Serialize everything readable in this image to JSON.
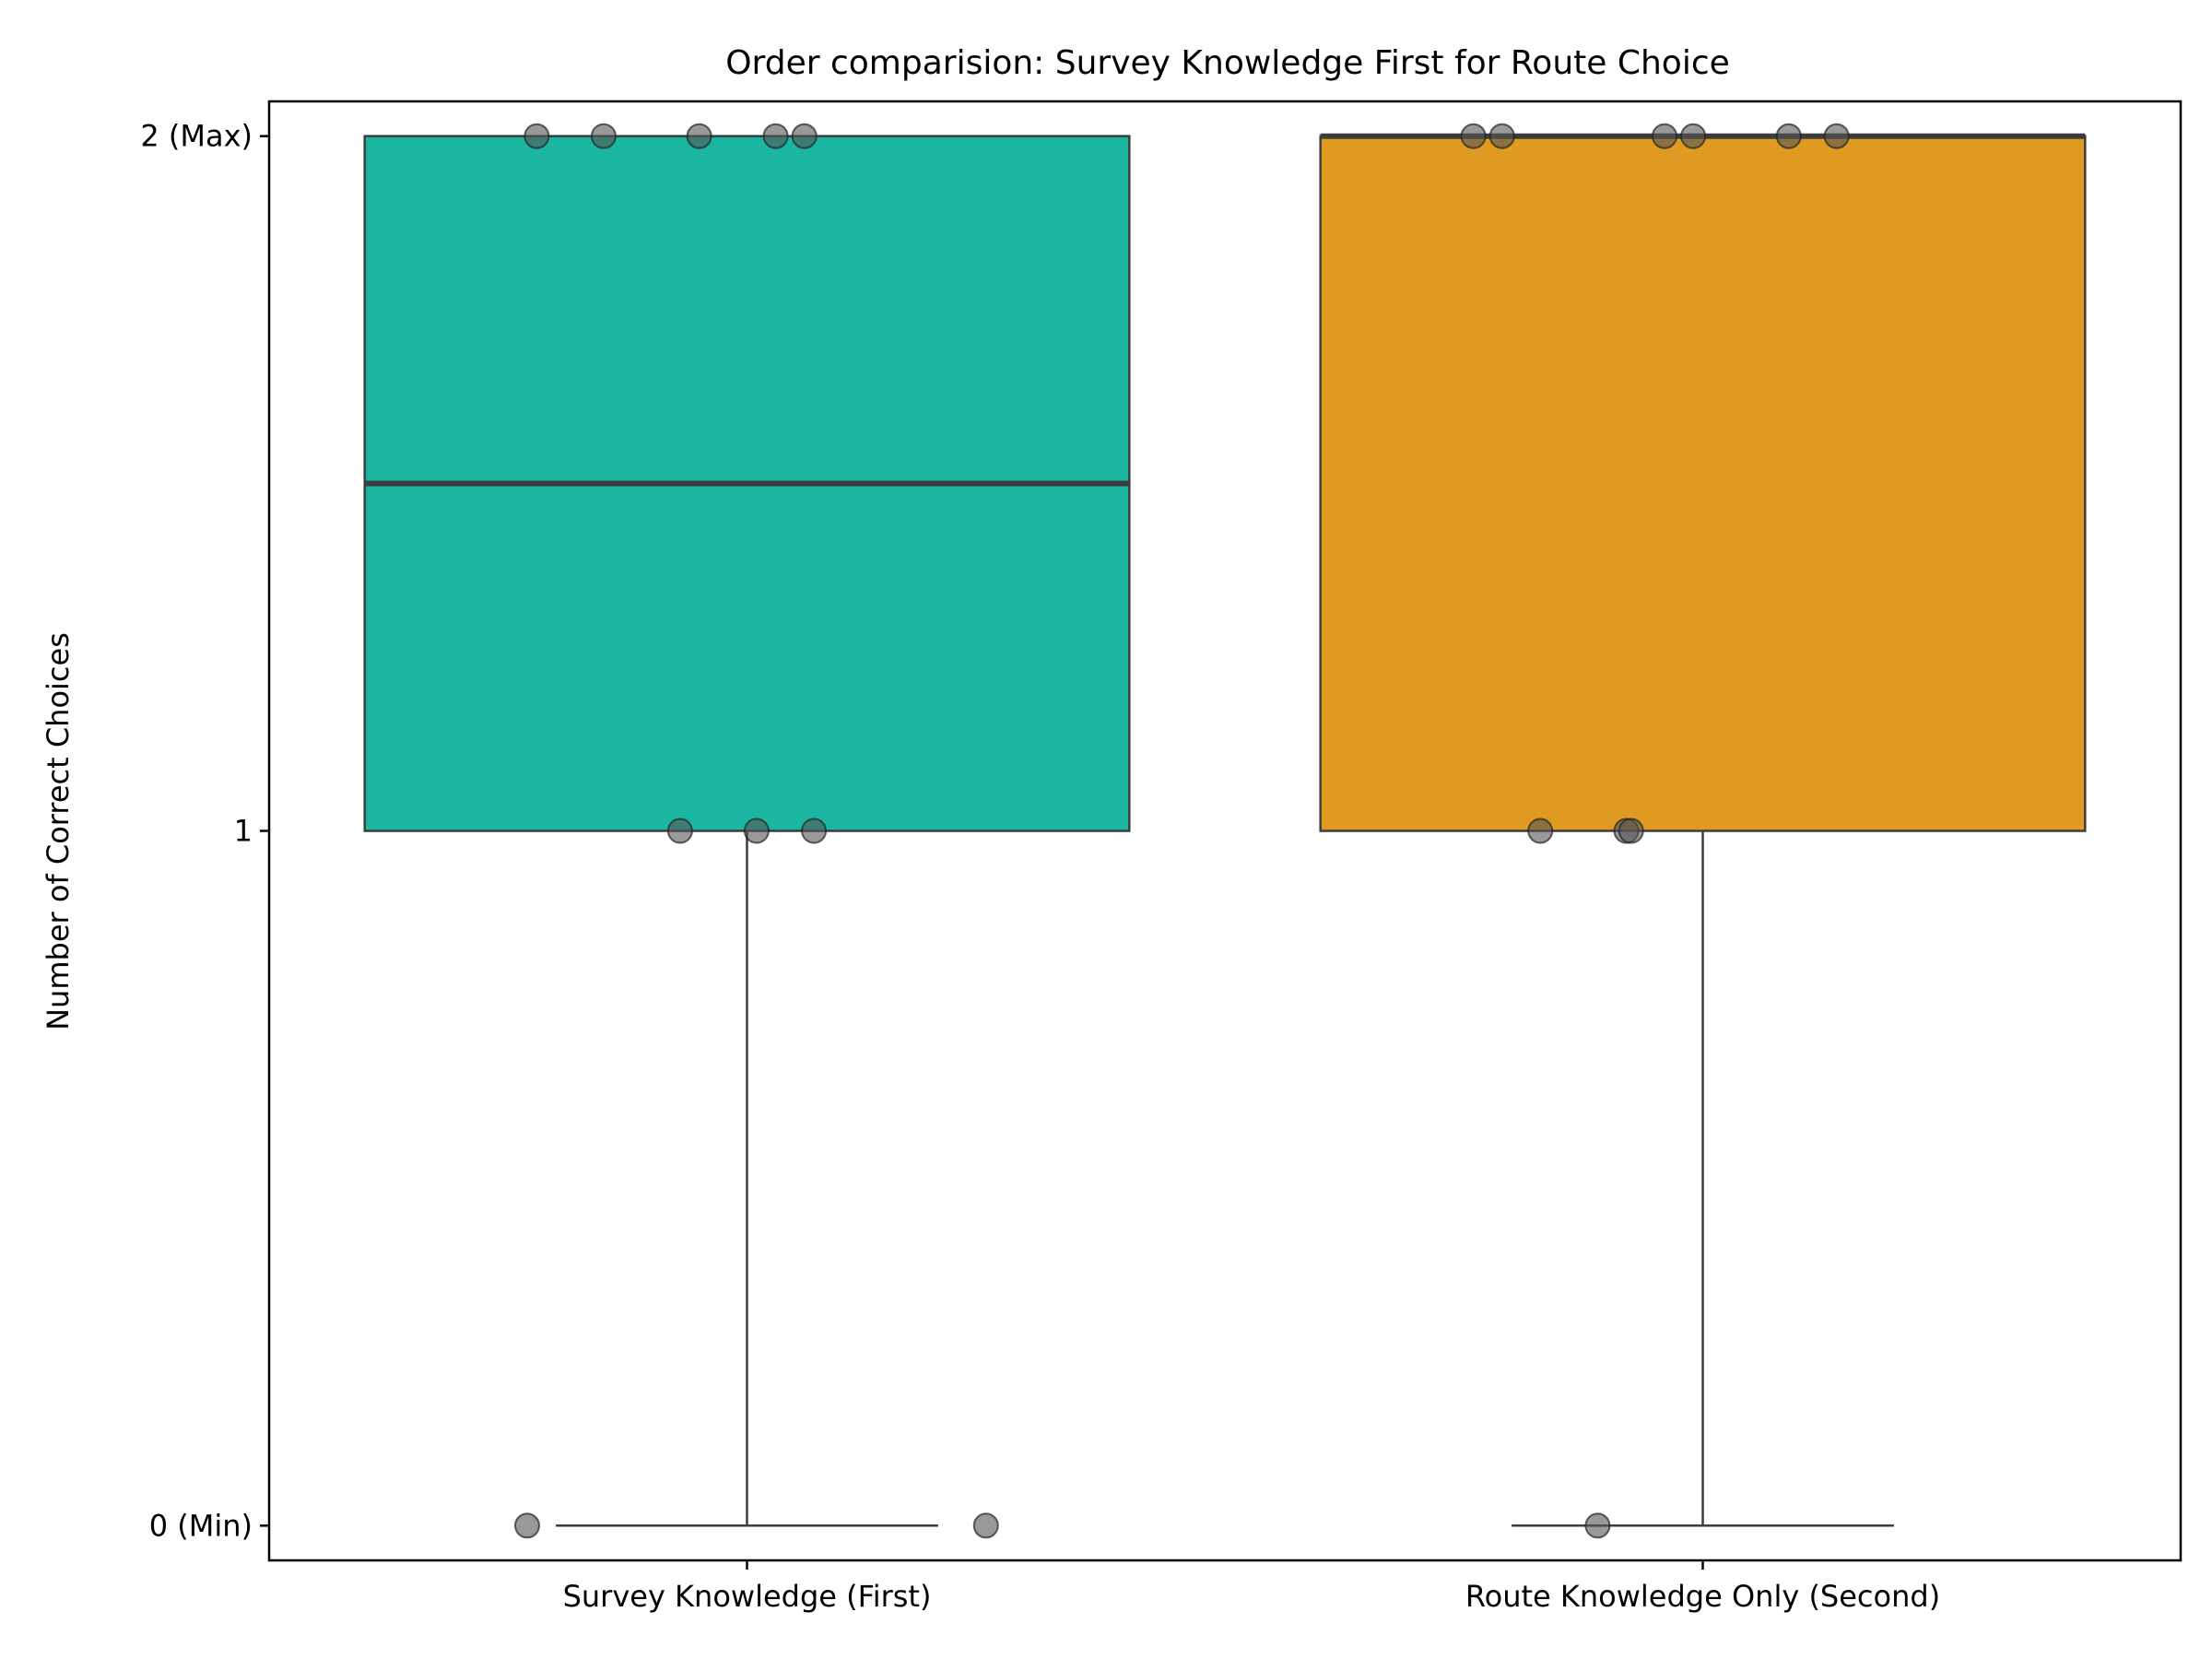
{
  "chart_data": {
    "type": "box",
    "title": "Order comparision: Survey Knowledge First for Route Choice",
    "xlabel": "",
    "ylabel": "Number of Correct Choices",
    "ylim": [
      -0.05,
      2.05
    ],
    "yticks": [
      {
        "value": 0,
        "label": "0 (Min)"
      },
      {
        "value": 1,
        "label": "1"
      },
      {
        "value": 2,
        "label": "2 (Max)"
      }
    ],
    "categories": [
      "Survey Knowledge (First)",
      "Route Knowledge Only (Second)"
    ],
    "boxes": [
      {
        "name": "Survey Knowledge (First)",
        "color": "#1bb6a1",
        "whisker_low": 0,
        "q1": 1,
        "median": 1.5,
        "q3": 2,
        "whisker_high": 2
      },
      {
        "name": "Route Knowledge Only (Second)",
        "color": "#df9b21",
        "whisker_low": 0,
        "q1": 1,
        "median": 2,
        "q3": 2,
        "whisker_high": 2
      }
    ],
    "points": [
      {
        "category": 0,
        "jitter": -0.22,
        "y": 2
      },
      {
        "category": 0,
        "jitter": -0.15,
        "y": 2
      },
      {
        "category": 0,
        "jitter": -0.05,
        "y": 2
      },
      {
        "category": 0,
        "jitter": 0.03,
        "y": 2
      },
      {
        "category": 0,
        "jitter": 0.06,
        "y": 2
      },
      {
        "category": 0,
        "jitter": -0.07,
        "y": 1
      },
      {
        "category": 0,
        "jitter": 0.01,
        "y": 1
      },
      {
        "category": 0,
        "jitter": 0.07,
        "y": 1
      },
      {
        "category": 0,
        "jitter": -0.23,
        "y": 0
      },
      {
        "category": 0,
        "jitter": 0.25,
        "y": 0
      },
      {
        "category": 1,
        "jitter": -0.24,
        "y": 2
      },
      {
        "category": 1,
        "jitter": -0.21,
        "y": 2
      },
      {
        "category": 1,
        "jitter": -0.04,
        "y": 2
      },
      {
        "category": 1,
        "jitter": -0.01,
        "y": 2
      },
      {
        "category": 1,
        "jitter": 0.09,
        "y": 2
      },
      {
        "category": 1,
        "jitter": 0.14,
        "y": 2
      },
      {
        "category": 1,
        "jitter": -0.17,
        "y": 1
      },
      {
        "category": 1,
        "jitter": -0.08,
        "y": 1
      },
      {
        "category": 1,
        "jitter": -0.075,
        "y": 1
      },
      {
        "category": 1,
        "jitter": -0.11,
        "y": 0
      }
    ],
    "point_color": "#555555",
    "grid": false,
    "legend": "none"
  }
}
